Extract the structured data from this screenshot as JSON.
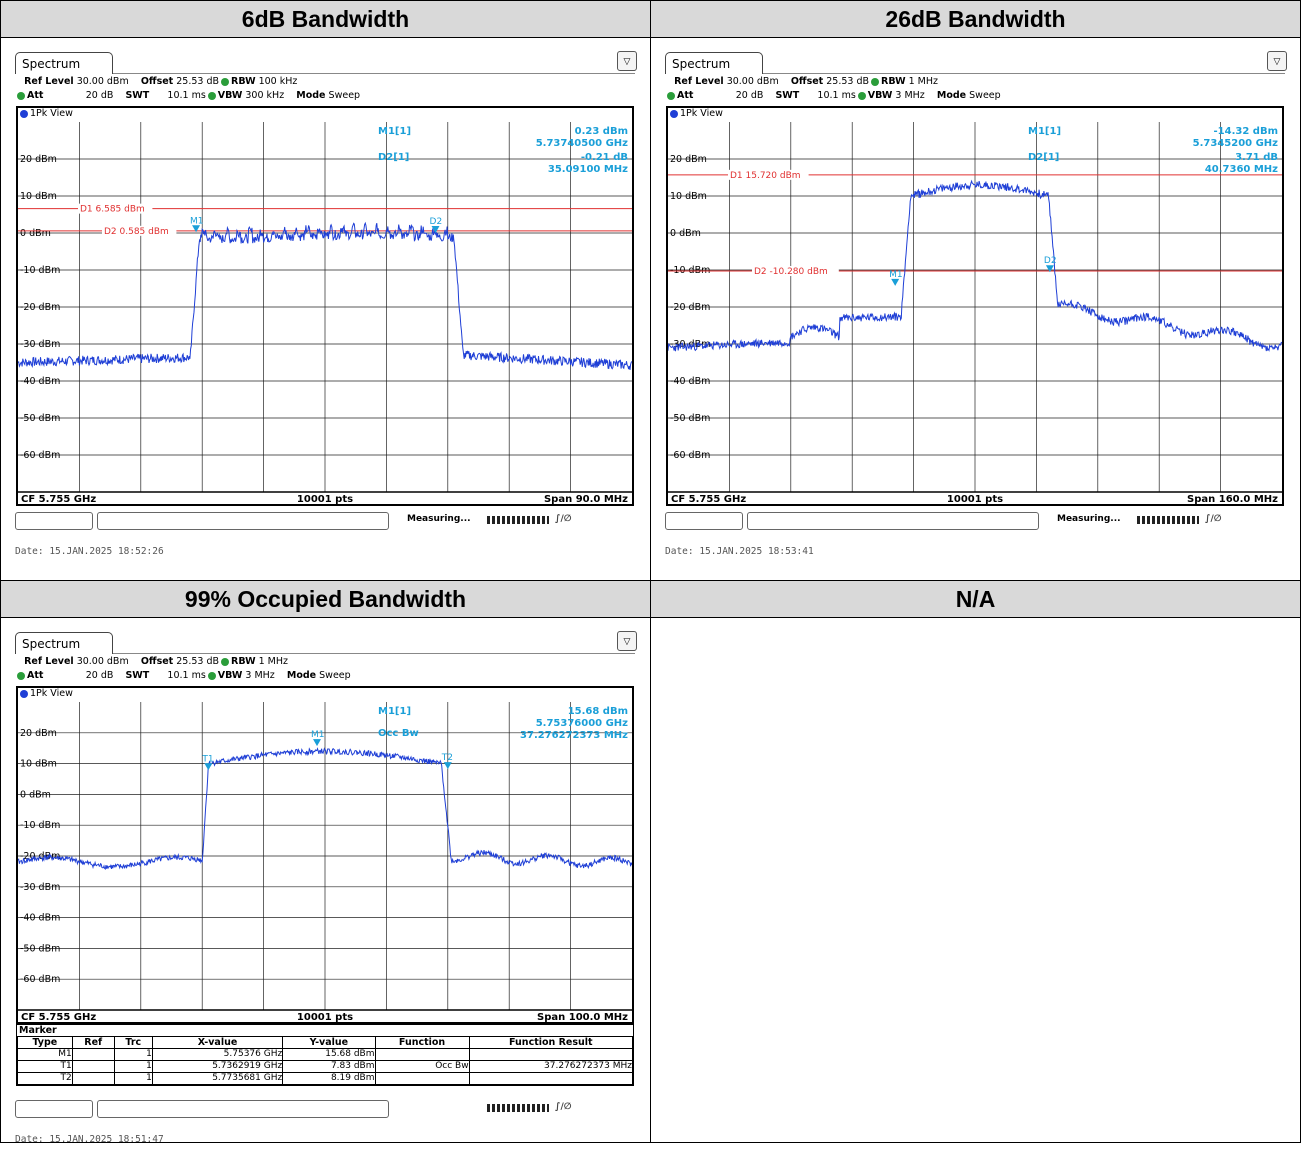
{
  "headers": [
    "6dB Bandwidth",
    "26dB Bandwidth",
    "99% Occupied Bandwidth",
    "N/A"
  ],
  "plots": [
    {
      "tab": "Spectrum",
      "ref_level_label": "Ref Level",
      "ref_level": "30.00 dBm",
      "offset_label": "Offset",
      "offset": "25.53 dB",
      "rbw_label": "RBW",
      "rbw": "100 kHz",
      "att_label": "Att",
      "att": "20 dB",
      "swt_label": "SWT",
      "swt": "10.1 ms",
      "vbw_label": "VBW",
      "vbw": "300 kHz",
      "mode_label": "Mode",
      "mode": "Sweep",
      "view": "1Pk View",
      "y_ticks": [
        "20 dBm",
        "10 dBm",
        "0 dBm",
        "-10 dBm",
        "-20 dBm",
        "-30 dBm",
        "-40 dBm",
        "-50 dBm",
        "-60 dBm"
      ],
      "marker_readout": {
        "m1": "M1[1]",
        "m1_val": "0.23 dBm",
        "m1_freq": "5.73740500 GHz",
        "d2": "D2[1]",
        "d2_val": "-0.21 dB",
        "d2_freq": "35.09100 MHz"
      },
      "lines": [
        {
          "label": "D1 6.585 dBm",
          "level": 6.585
        },
        {
          "label": "D2 0.585 dBm",
          "level": 0.585
        }
      ],
      "cf": "CF 5.755 GHz",
      "pts": "10001 pts",
      "span": "Span 90.0 MHz",
      "measuring": "Measuring...",
      "date": "Date: 15.JAN.2025  18:52:26"
    },
    {
      "tab": "Spectrum",
      "ref_level_label": "Ref Level",
      "ref_level": "30.00 dBm",
      "offset_label": "Offset",
      "offset": "25.53 dB",
      "rbw_label": "RBW",
      "rbw": "1 MHz",
      "att_label": "Att",
      "att": "20 dB",
      "swt_label": "SWT",
      "swt": "10.1 ms",
      "vbw_label": "VBW",
      "vbw": "3 MHz",
      "mode_label": "Mode",
      "mode": "Sweep",
      "view": "1Pk View",
      "y_ticks": [
        "20 dBm",
        "10 dBm",
        "0 dBm",
        "-10 dBm",
        "-20 dBm",
        "-30 dBm",
        "-40 dBm",
        "-50 dBm",
        "-60 dBm"
      ],
      "marker_readout": {
        "m1": "M1[1]",
        "m1_val": "-14.32 dBm",
        "m1_freq": "5.7345200 GHz",
        "d2": "D2[1]",
        "d2_val": "3.71 dB",
        "d2_freq": "40.7360 MHz"
      },
      "lines": [
        {
          "label": "D1 15.720 dBm",
          "level": 15.72
        },
        {
          "label": "D2 -10.280 dBm",
          "level": -10.28
        }
      ],
      "cf": "CF 5.755 GHz",
      "pts": "10001 pts",
      "span": "Span 160.0 MHz",
      "measuring": "Measuring...",
      "date": "Date: 15.JAN.2025  18:53:41"
    },
    {
      "tab": "Spectrum",
      "ref_level_label": "Ref Level",
      "ref_level": "30.00 dBm",
      "offset_label": "Offset",
      "offset": "25.53 dB",
      "rbw_label": "RBW",
      "rbw": "1 MHz",
      "att_label": "Att",
      "att": "20 dB",
      "swt_label": "SWT",
      "swt": "10.1 ms",
      "vbw_label": "VBW",
      "vbw": "3 MHz",
      "mode_label": "Mode",
      "mode": "Sweep",
      "view": "1Pk View",
      "y_ticks": [
        "20 dBm",
        "10 dBm",
        "0 dBm",
        "-10 dBm",
        "-20 dBm",
        "-30 dBm",
        "-40 dBm",
        "-50 dBm",
        "-60 dBm"
      ],
      "marker_readout": {
        "m1": "M1[1]",
        "m1_val": "15.68 dBm",
        "m1_freq": "5.75376000 GHz",
        "occ": "Occ Bw",
        "occ_val": "37.276272373 MHz"
      },
      "cf": "CF 5.755 GHz",
      "pts": "10001 pts",
      "span": "Span 100.0 MHz",
      "marker_table": {
        "title": "Marker",
        "columns": [
          "Type",
          "Ref",
          "Trc",
          "X-value",
          "Y-value",
          "Function",
          "Function Result"
        ],
        "rows": [
          [
            "M1",
            "",
            "1",
            "5.75376 GHz",
            "15.68 dBm",
            "",
            ""
          ],
          [
            "T1",
            "",
            "1",
            "5.7362919 GHz",
            "7.83 dBm",
            "Occ Bw",
            "37.276272373 MHz"
          ],
          [
            "T2",
            "",
            "1",
            "5.7735681 GHz",
            "8.19 dBm",
            "",
            ""
          ]
        ]
      },
      "date": "Date: 15.JAN.2025  18:51:47"
    }
  ],
  "colors": {
    "trace": "#1f3fd6",
    "display_line": "#e03030",
    "marker": "#1a9fd8",
    "header_bg": "#d9d9d9"
  }
}
